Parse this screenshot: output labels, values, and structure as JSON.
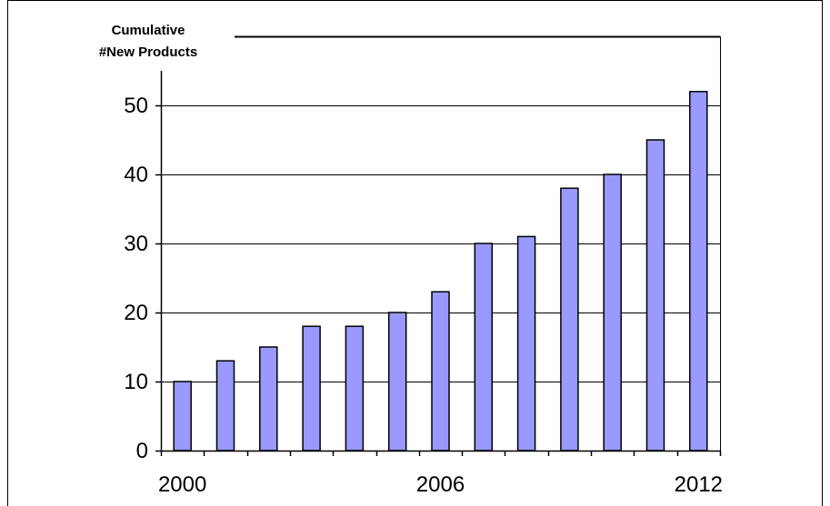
{
  "colors": {
    "bar_fill": "#9999ff",
    "bar_stroke": "#000000",
    "grid": "#000000",
    "frame": "#000000"
  },
  "chart_data": {
    "type": "bar",
    "title": "",
    "xlabel": "",
    "ylabel_lines": [
      "Cumulative",
      "#New Products"
    ],
    "x": [
      2000,
      2001,
      2002,
      2003,
      2004,
      2005,
      2006,
      2007,
      2008,
      2009,
      2010,
      2011,
      2012
    ],
    "values": [
      10,
      13,
      15,
      18,
      18,
      20,
      23,
      30,
      31,
      38,
      40,
      45,
      52
    ],
    "ylim": [
      0,
      55
    ],
    "yticks": [
      0,
      10,
      20,
      30,
      40,
      50
    ],
    "xtick_labels": [
      {
        "year": 2000,
        "label": "2000"
      },
      {
        "year": 2006,
        "label": "2006"
      },
      {
        "year": 2012,
        "label": "2012"
      }
    ],
    "grid": "horizontal",
    "legend": "none"
  }
}
